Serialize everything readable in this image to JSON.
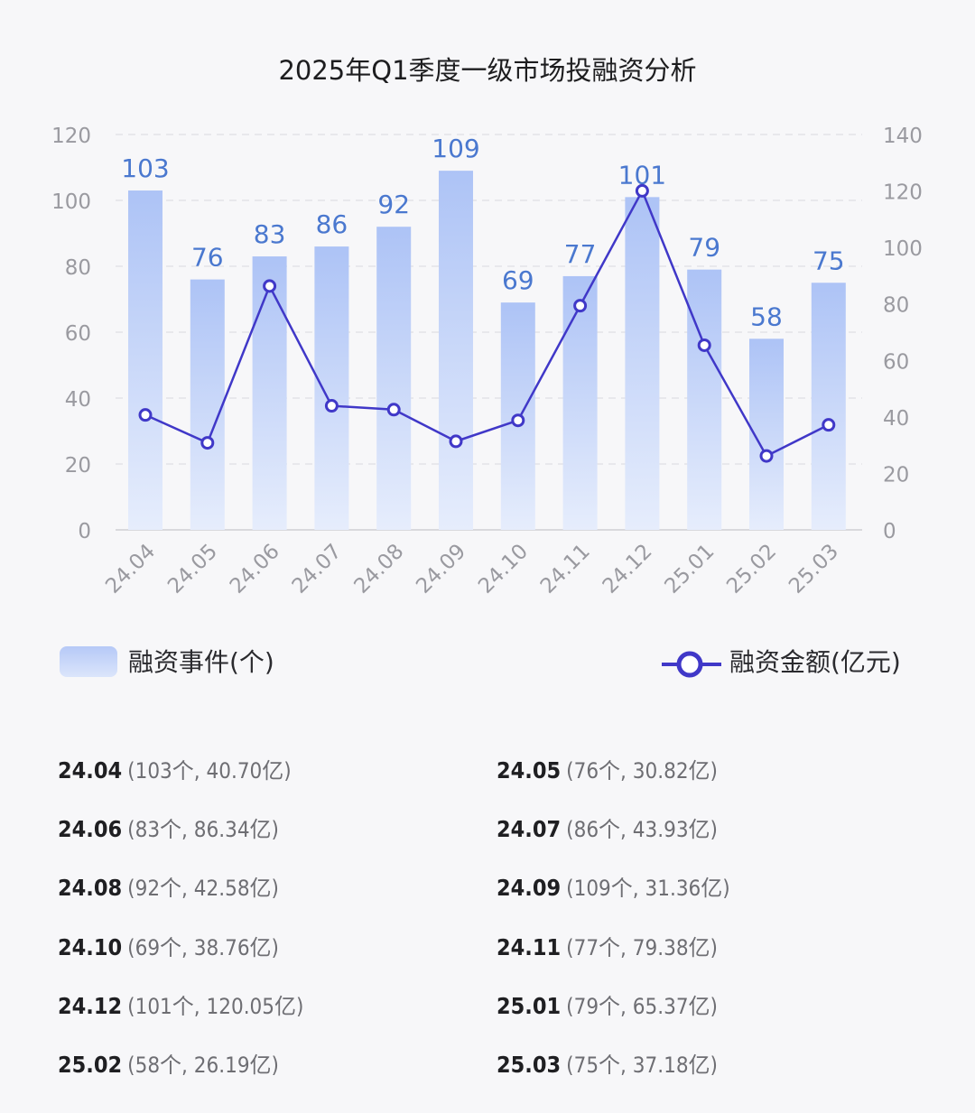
{
  "title": "2025年Q1季度一级市场投融资分析",
  "chart_data": {
    "type": "bar+line",
    "categories": [
      "24.04",
      "24.05",
      "24.06",
      "24.07",
      "24.08",
      "24.09",
      "24.10",
      "24.11",
      "24.12",
      "25.01",
      "25.02",
      "25.03"
    ],
    "series": [
      {
        "name": "融资事件(个)",
        "type": "bar",
        "axis": "left",
        "values": [
          103,
          76,
          83,
          86,
          92,
          109,
          69,
          77,
          101,
          79,
          58,
          75
        ]
      },
      {
        "name": "融资金额(亿元)",
        "type": "line",
        "axis": "right",
        "values": [
          40.7,
          30.82,
          86.34,
          43.93,
          42.58,
          31.36,
          38.76,
          79.38,
          120.05,
          65.37,
          26.19,
          37.18
        ]
      }
    ],
    "y_left": {
      "ticks": [
        0,
        20,
        40,
        60,
        80,
        100,
        120
      ],
      "range": [
        0,
        120
      ]
    },
    "y_right": {
      "ticks": [
        0,
        20,
        40,
        60,
        80,
        100,
        120,
        140
      ],
      "range": [
        0,
        140
      ]
    },
    "grid": true,
    "legend": "bottom",
    "colors": {
      "bar": "#b3c8f7",
      "line": "#4038c8",
      "label": "#4a78cf",
      "axis": "#9a9aa0"
    }
  },
  "legend": {
    "bar_label": "融资事件(个)",
    "line_label": "融资金额(亿元)"
  },
  "details": [
    {
      "month": "24.04",
      "text": "(103个, 40.70亿)"
    },
    {
      "month": "24.05",
      "text": "(76个, 30.82亿)"
    },
    {
      "month": "24.06",
      "text": "(83个, 86.34亿)"
    },
    {
      "month": "24.07",
      "text": "(86个, 43.93亿)"
    },
    {
      "month": "24.08",
      "text": "(92个, 42.58亿)"
    },
    {
      "month": "24.09",
      "text": "(109个, 31.36亿)"
    },
    {
      "month": "24.10",
      "text": "(69个, 38.76亿)"
    },
    {
      "month": "24.11",
      "text": "(77个, 79.38亿)"
    },
    {
      "month": "24.12",
      "text": "(101个, 120.05亿)"
    },
    {
      "month": "25.01",
      "text": "(79个, 65.37亿)"
    },
    {
      "month": "25.02",
      "text": "(58个, 26.19亿)"
    },
    {
      "month": "25.03",
      "text": "(75个, 37.18亿)"
    }
  ]
}
